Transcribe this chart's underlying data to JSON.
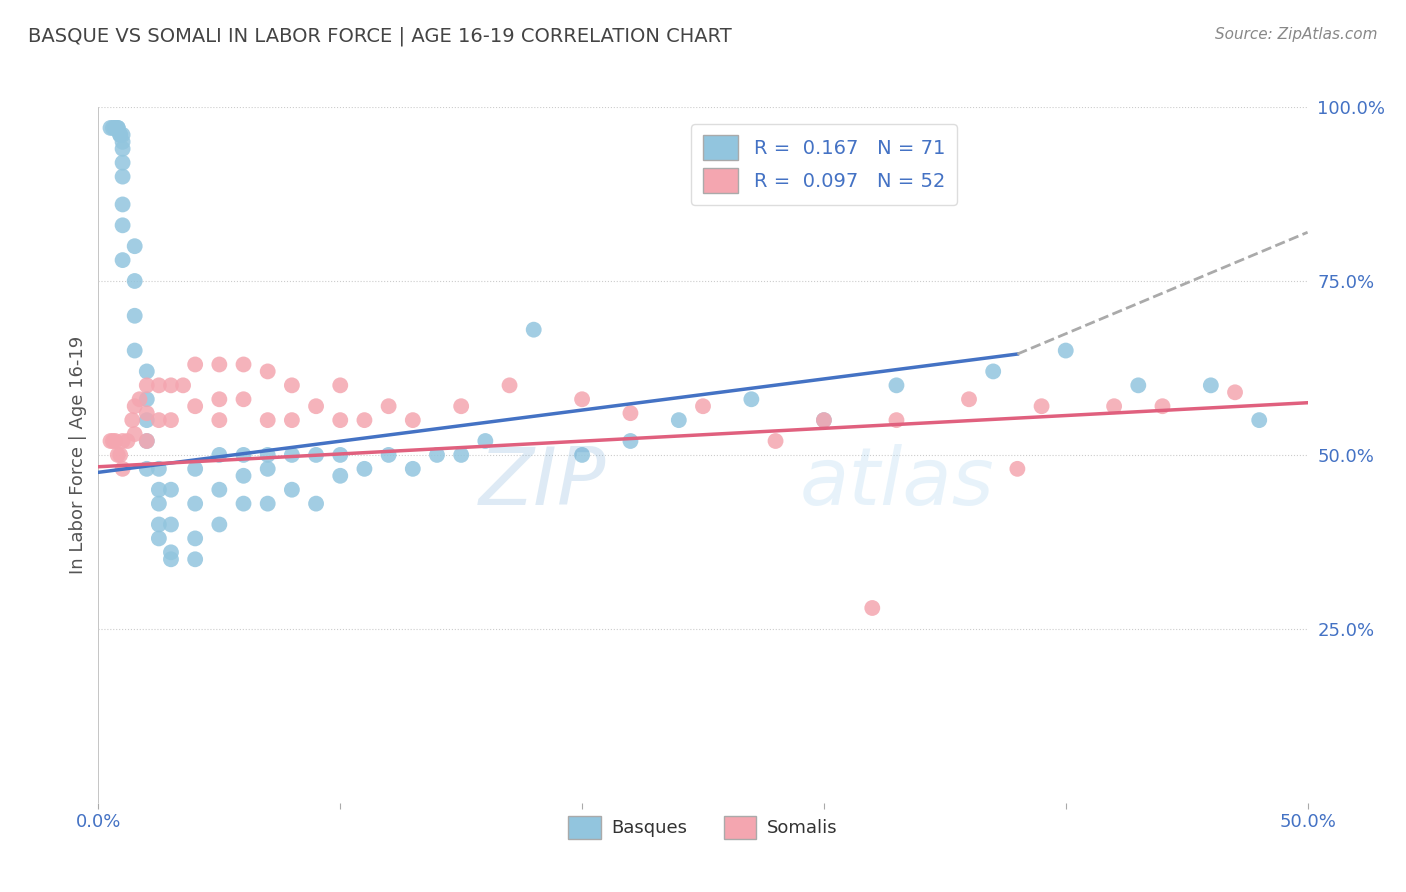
{
  "title": "BASQUE VS SOMALI IN LABOR FORCE | AGE 16-19 CORRELATION CHART",
  "source": "Source: ZipAtlas.com",
  "ylabel": "In Labor Force | Age 16-19",
  "xlim": [
    0.0,
    0.5
  ],
  "ylim": [
    0.0,
    1.0
  ],
  "xtick_positions": [
    0.0,
    0.1,
    0.2,
    0.3,
    0.4,
    0.5
  ],
  "xticklabels": [
    "0.0%",
    "",
    "",
    "",
    "",
    "50.0%"
  ],
  "ytick_positions": [
    0.25,
    0.5,
    0.75,
    1.0
  ],
  "ytick_labels": [
    "25.0%",
    "50.0%",
    "75.0%",
    "100.0%"
  ],
  "basque_color": "#92C5DE",
  "somali_color": "#F4A6B0",
  "basque_line_color": "#4472C4",
  "somali_line_color": "#E0607E",
  "dashed_line_color": "#AAAAAA",
  "text_color": "#4472C4",
  "title_color": "#444444",
  "source_color": "#888888",
  "grid_color": "#CCCCCC",
  "R_basque": 0.167,
  "N_basque": 71,
  "R_somali": 0.097,
  "N_somali": 52,
  "watermark": "ZIPatlas",
  "background_color": "#FFFFFF",
  "basque_line_x0": 0.0,
  "basque_line_y0": 0.475,
  "basque_line_x1": 0.38,
  "basque_line_y1": 0.645,
  "basque_line_x2": 0.5,
  "basque_line_y2": 0.82,
  "somali_line_x0": 0.0,
  "somali_line_y0": 0.483,
  "somali_line_x1": 0.5,
  "somali_line_y1": 0.575,
  "basque_x": [
    0.005,
    0.006,
    0.007,
    0.007,
    0.008,
    0.008,
    0.009,
    0.009,
    0.01,
    0.01,
    0.01,
    0.01,
    0.01,
    0.01,
    0.01,
    0.01,
    0.015,
    0.015,
    0.015,
    0.015,
    0.02,
    0.02,
    0.02,
    0.02,
    0.02,
    0.025,
    0.025,
    0.025,
    0.025,
    0.025,
    0.03,
    0.03,
    0.03,
    0.03,
    0.04,
    0.04,
    0.04,
    0.04,
    0.05,
    0.05,
    0.05,
    0.06,
    0.06,
    0.06,
    0.07,
    0.07,
    0.07,
    0.08,
    0.08,
    0.09,
    0.09,
    0.1,
    0.1,
    0.11,
    0.12,
    0.13,
    0.14,
    0.15,
    0.16,
    0.18,
    0.2,
    0.22,
    0.24,
    0.27,
    0.3,
    0.33,
    0.37,
    0.4,
    0.43,
    0.46,
    0.48
  ],
  "basque_y": [
    0.97,
    0.97,
    0.97,
    0.97,
    0.97,
    0.97,
    0.96,
    0.96,
    0.96,
    0.95,
    0.94,
    0.92,
    0.9,
    0.86,
    0.83,
    0.78,
    0.8,
    0.75,
    0.7,
    0.65,
    0.62,
    0.58,
    0.55,
    0.52,
    0.48,
    0.45,
    0.48,
    0.43,
    0.4,
    0.38,
    0.36,
    0.45,
    0.4,
    0.35,
    0.38,
    0.43,
    0.48,
    0.35,
    0.45,
    0.5,
    0.4,
    0.5,
    0.47,
    0.43,
    0.5,
    0.48,
    0.43,
    0.5,
    0.45,
    0.5,
    0.43,
    0.5,
    0.47,
    0.48,
    0.5,
    0.48,
    0.5,
    0.5,
    0.52,
    0.68,
    0.5,
    0.52,
    0.55,
    0.58,
    0.55,
    0.6,
    0.62,
    0.65,
    0.6,
    0.6,
    0.55
  ],
  "somali_x": [
    0.005,
    0.006,
    0.007,
    0.008,
    0.009,
    0.01,
    0.01,
    0.012,
    0.014,
    0.015,
    0.015,
    0.017,
    0.02,
    0.02,
    0.02,
    0.025,
    0.025,
    0.03,
    0.03,
    0.035,
    0.04,
    0.04,
    0.05,
    0.05,
    0.05,
    0.06,
    0.06,
    0.07,
    0.07,
    0.08,
    0.08,
    0.09,
    0.1,
    0.1,
    0.11,
    0.12,
    0.13,
    0.15,
    0.17,
    0.2,
    0.22,
    0.25,
    0.28,
    0.3,
    0.33,
    0.36,
    0.39,
    0.42,
    0.44,
    0.47,
    0.38,
    0.32
  ],
  "somali_y": [
    0.52,
    0.52,
    0.52,
    0.5,
    0.5,
    0.48,
    0.52,
    0.52,
    0.55,
    0.53,
    0.57,
    0.58,
    0.6,
    0.56,
    0.52,
    0.6,
    0.55,
    0.6,
    0.55,
    0.6,
    0.63,
    0.57,
    0.63,
    0.58,
    0.55,
    0.63,
    0.58,
    0.62,
    0.55,
    0.6,
    0.55,
    0.57,
    0.6,
    0.55,
    0.55,
    0.57,
    0.55,
    0.57,
    0.6,
    0.58,
    0.56,
    0.57,
    0.52,
    0.55,
    0.55,
    0.58,
    0.57,
    0.57,
    0.57,
    0.59,
    0.48,
    0.28
  ]
}
